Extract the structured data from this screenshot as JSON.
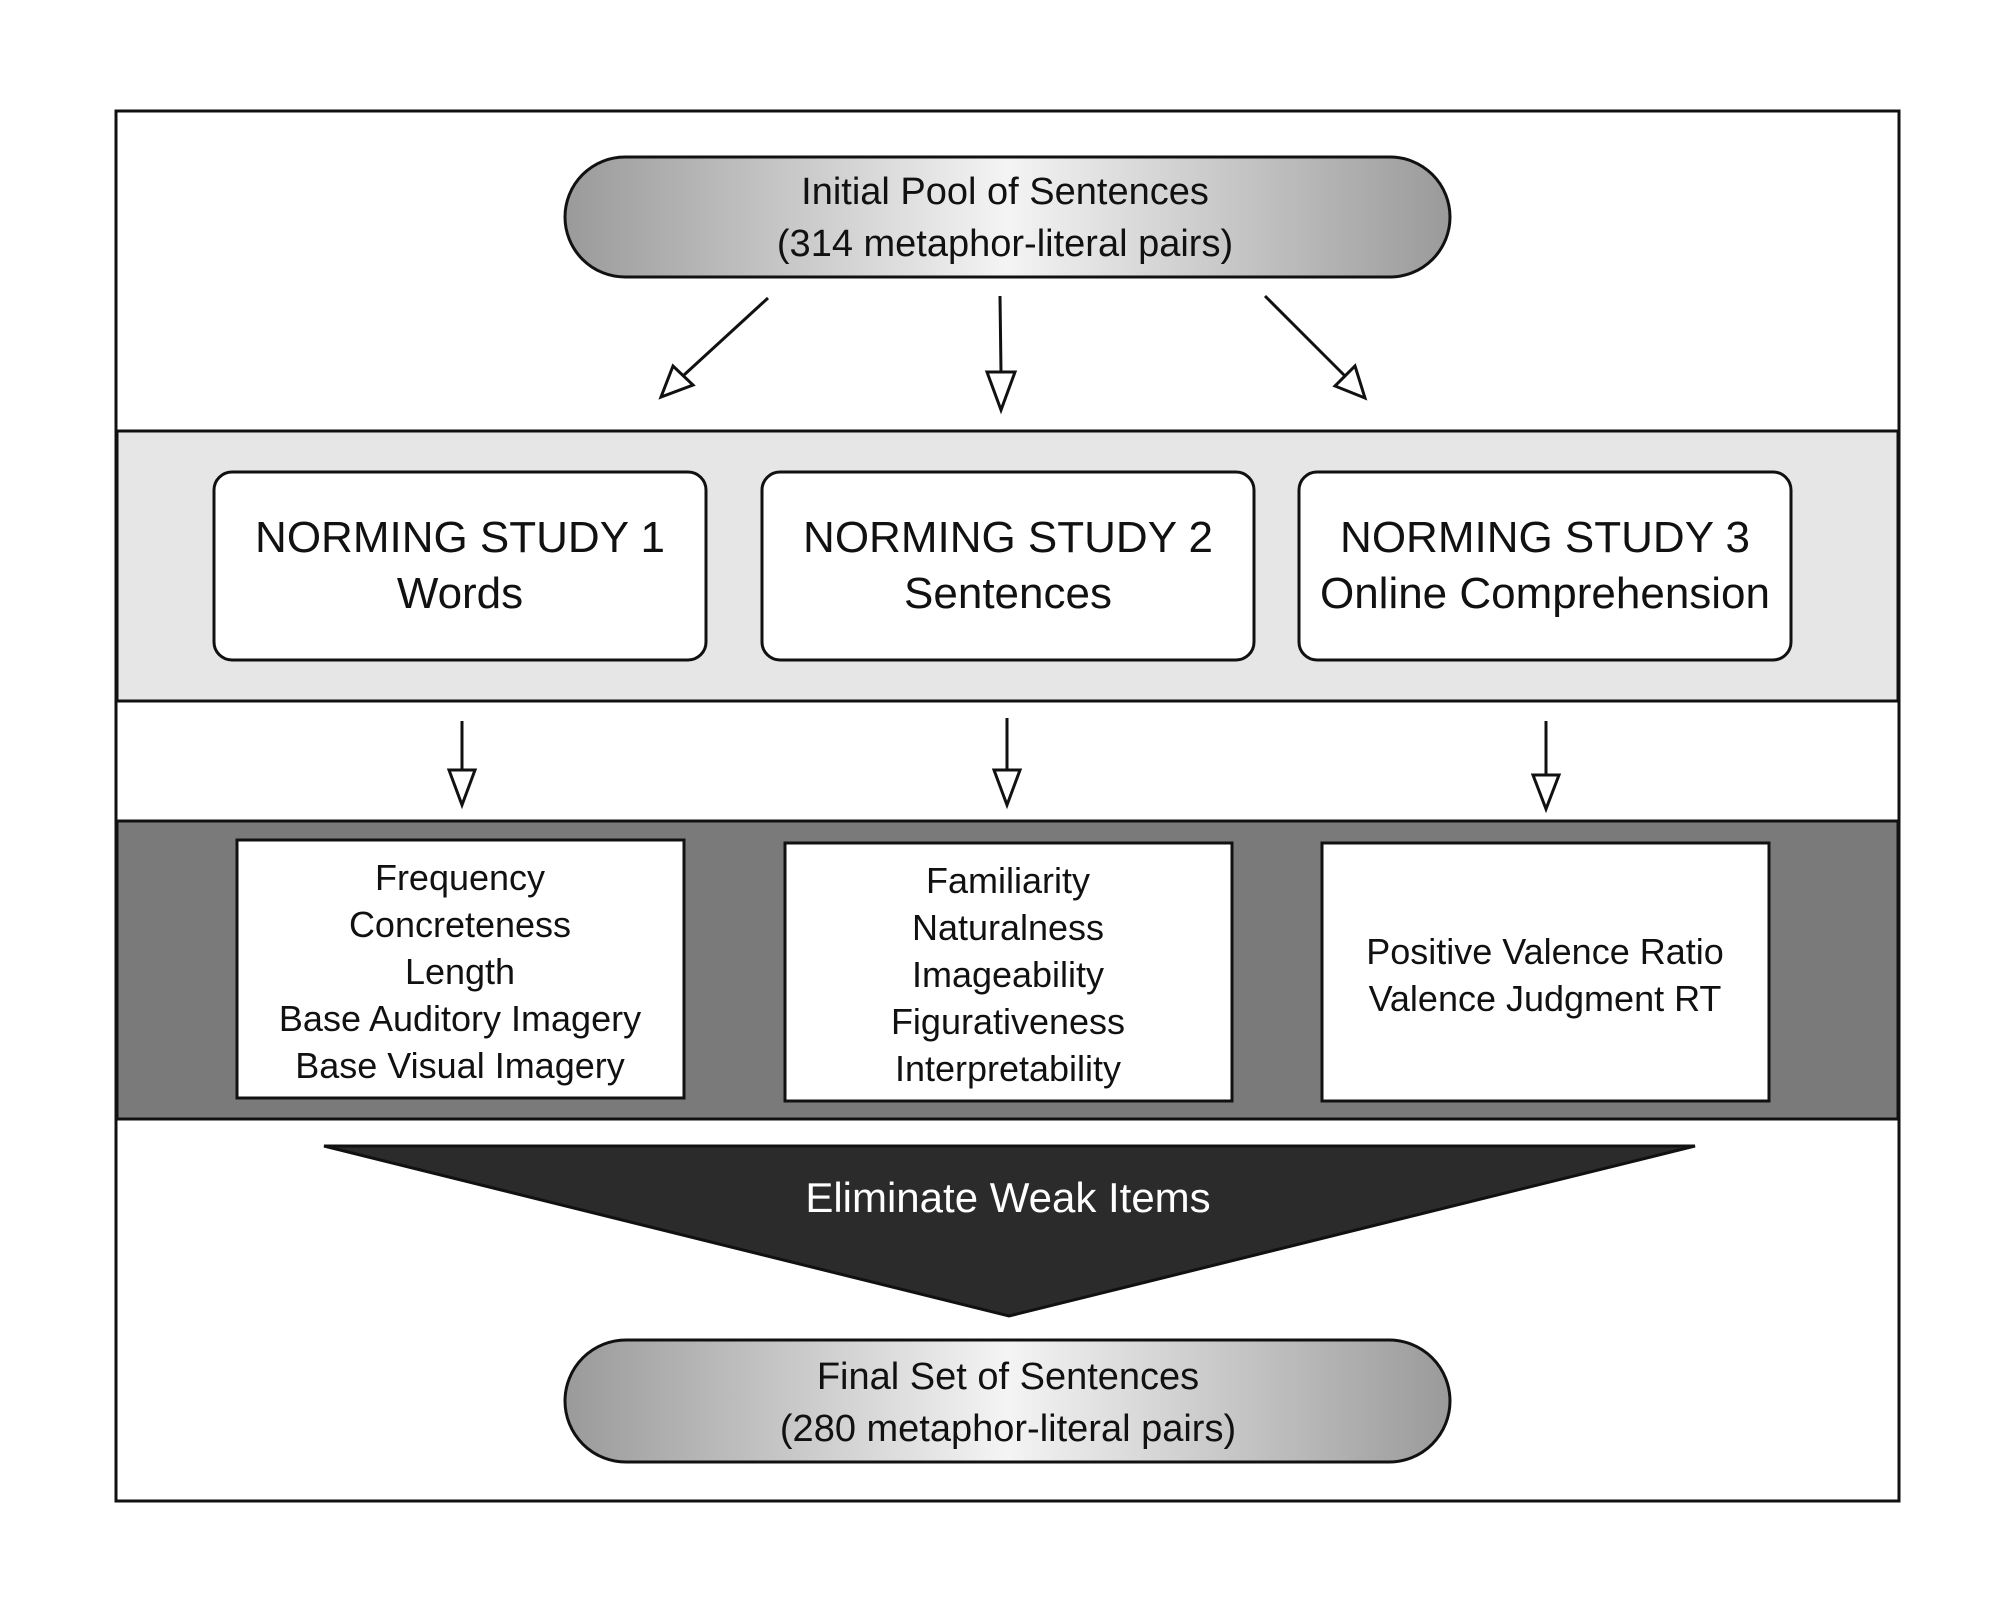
{
  "initial_pool": {
    "line1": "Initial Pool of Sentences",
    "line2": "(314 metaphor-literal pairs)"
  },
  "studies": [
    {
      "line1": "NORMING STUDY 1",
      "line2": "Words"
    },
    {
      "line1": "NORMING STUDY 2",
      "line2": "Sentences"
    },
    {
      "line1": "NORMING STUDY 3",
      "line2": "Online Comprehension"
    }
  ],
  "measures": [
    {
      "items": [
        "Frequency",
        "Concreteness",
        "Length",
        "Base Auditory Imagery",
        "Base Visual Imagery"
      ]
    },
    {
      "items": [
        "Familiarity",
        "Naturalness",
        "Imageability",
        "Figurativeness",
        "Interpretability"
      ]
    },
    {
      "items": [
        "Positive Valence Ratio",
        "Valence Judgment RT"
      ]
    }
  ],
  "funnel": {
    "label": "Eliminate Weak Items"
  },
  "final_set": {
    "line1": "Final Set of Sentences",
    "line2": "(280 metaphor-literal pairs)"
  },
  "colors": {
    "band_light": "#e6e6e6",
    "band_dark": "#7a7a7a",
    "funnel": "#2b2b2b",
    "stroke": "#111111"
  }
}
